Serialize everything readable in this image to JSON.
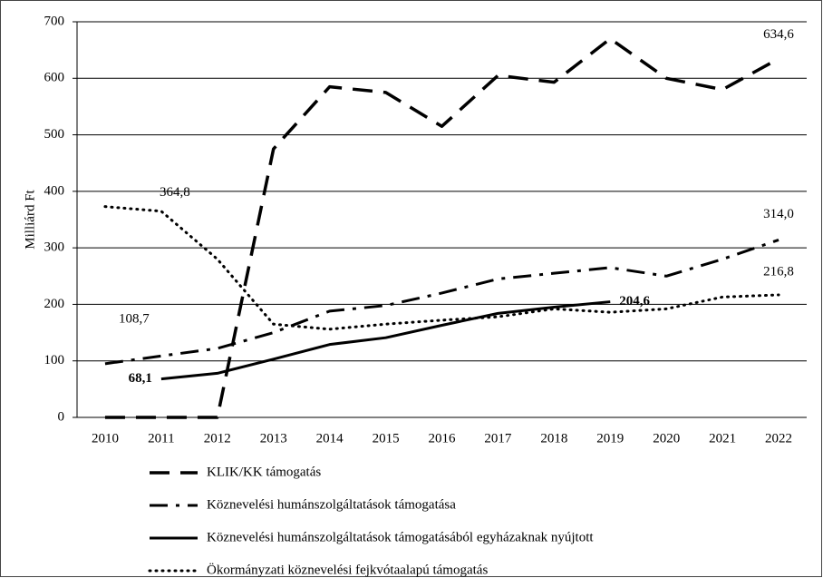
{
  "chart_data": {
    "type": "line",
    "ylabel": "Milliárd Ft",
    "categories": [
      "2010",
      "2011",
      "2012",
      "2013",
      "2014",
      "2015",
      "2016",
      "2017",
      "2018",
      "2019",
      "2020",
      "2021",
      "2022"
    ],
    "ylim": [
      0,
      700
    ],
    "yticks": [
      0,
      100,
      200,
      300,
      400,
      500,
      600,
      700
    ],
    "grid": true,
    "legend": "bottom",
    "series": [
      {
        "name": "KLIK/KK támogatás",
        "color": "#000000",
        "style": "dashed",
        "values": [
          0,
          0,
          0,
          475,
          585,
          575,
          515,
          605,
          593,
          670,
          600,
          580,
          634.6
        ],
        "value_labels": [
          null,
          null,
          null,
          null,
          null,
          null,
          null,
          null,
          null,
          null,
          null,
          null,
          "634,6"
        ]
      },
      {
        "name": "Köznevelési humánszolgáltatások támogatása",
        "color": "#000000",
        "style": "dash-dot",
        "values": [
          95,
          108.7,
          122,
          150,
          188,
          198,
          220,
          245,
          255,
          265,
          250,
          280,
          314.0
        ],
        "value_labels": [
          null,
          "108,7",
          null,
          null,
          null,
          null,
          null,
          null,
          null,
          null,
          null,
          null,
          "314,0"
        ]
      },
      {
        "name": "Köznevelési humánszolgáltatások támogatásából egyházaknak nyújtott",
        "color": "#000000",
        "style": "solid",
        "values": [
          null,
          68.1,
          78,
          103,
          129,
          141,
          163,
          184,
          195,
          204.6,
          null,
          null,
          null
        ],
        "value_labels": [
          null,
          "68,1",
          null,
          null,
          null,
          null,
          null,
          null,
          null,
          "204,6",
          null,
          null,
          null
        ]
      },
      {
        "name": "Ökormányzati köznevelési fejkvótaalapú támogatás",
        "color": "#000000",
        "style": "dotted",
        "values": [
          373,
          364.8,
          280,
          165,
          156,
          165,
          172,
          178,
          192,
          186,
          192,
          213,
          216.8
        ],
        "value_labels": [
          null,
          "364,8",
          null,
          null,
          null,
          null,
          null,
          null,
          null,
          null,
          null,
          null,
          "216,8"
        ]
      }
    ]
  }
}
